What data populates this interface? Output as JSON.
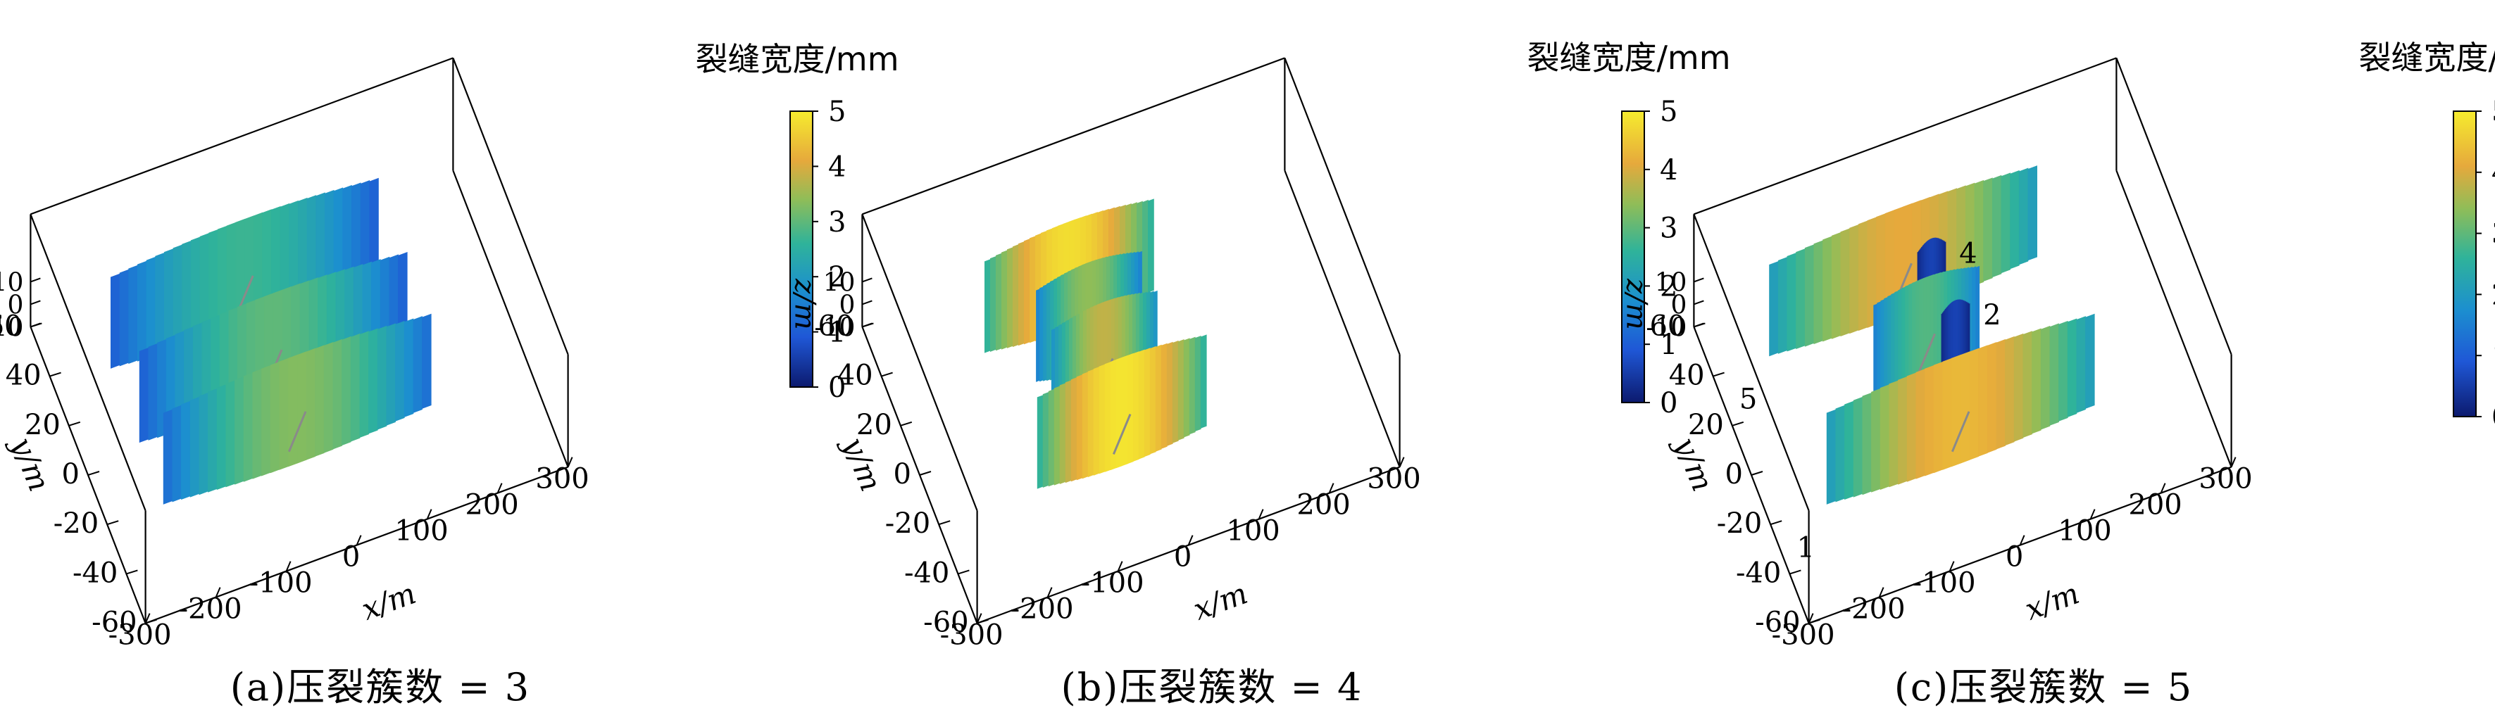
{
  "figure": {
    "colorbar": {
      "title": "裂缝宽度/mm",
      "ticks": [
        "0",
        "1",
        "2",
        "3",
        "4",
        "5"
      ],
      "range": [
        0,
        5
      ]
    },
    "xlabel": "x/m",
    "ylabel": "y/m",
    "zlabel": "z/m",
    "xticks": [
      "-300",
      "-200",
      "-100",
      "0",
      "100",
      "200",
      "300"
    ],
    "yticks": [
      "-60",
      "-40",
      "-20",
      "0",
      "20",
      "40",
      "60"
    ],
    "zticks": [
      "-10",
      "0",
      "10"
    ]
  },
  "chart_data": [
    {
      "type": "surface",
      "caption": "(a)压裂簇数 = 3",
      "fractures": [
        {
          "y": 35,
          "x_range": [
            -220,
            160
          ],
          "width_edge": 1.0,
          "width_center": 2.7
        },
        {
          "y": 5,
          "x_range": [
            -220,
            160
          ],
          "width_edge": 1.0,
          "width_center": 3.0
        },
        {
          "y": -20,
          "x_range": [
            -220,
            160
          ],
          "width_edge": 1.2,
          "width_center": 3.3
        }
      ],
      "cluster_labels": []
    },
    {
      "type": "surface",
      "caption": "(b)压裂簇数 = 4",
      "fractures": [
        {
          "y": 35,
          "x_range": [
            -160,
            80
          ],
          "width_edge": 2.5,
          "width_center": 4.8
        },
        {
          "y": 18,
          "x_range": [
            -110,
            40
          ],
          "width_edge": 1.5,
          "width_center": 3.4
        },
        {
          "y": 2,
          "x_range": [
            -110,
            40
          ],
          "width_edge": 1.8,
          "width_center": 3.8
        },
        {
          "y": -20,
          "x_range": [
            -160,
            80
          ],
          "width_edge": 2.5,
          "width_center": 4.9
        }
      ],
      "cluster_labels": []
    },
    {
      "type": "surface",
      "caption": "(c)压裂簇数 = 5",
      "fractures": [
        {
          "y": -20,
          "x_range": [
            -220,
            160
          ],
          "width_edge": 2.0,
          "width_center": 4.3,
          "label": "1"
        },
        {
          "y": 0,
          "x_range": [
            -30,
            10
          ],
          "width_edge": 0.2,
          "width_center": 0.6,
          "label": "2"
        },
        {
          "y": 12,
          "x_range": [
            -110,
            40
          ],
          "width_edge": 1.5,
          "width_center": 2.9,
          "label": "3"
        },
        {
          "y": 25,
          "x_range": [
            -30,
            10
          ],
          "width_edge": 0.2,
          "width_center": 0.6,
          "label": "4"
        },
        {
          "y": 40,
          "x_range": [
            -220,
            160
          ],
          "width_edge": 2.0,
          "width_center": 4.1,
          "label": "5"
        }
      ],
      "cluster_labels": [
        "1",
        "2",
        "3",
        "4",
        "5"
      ]
    }
  ]
}
